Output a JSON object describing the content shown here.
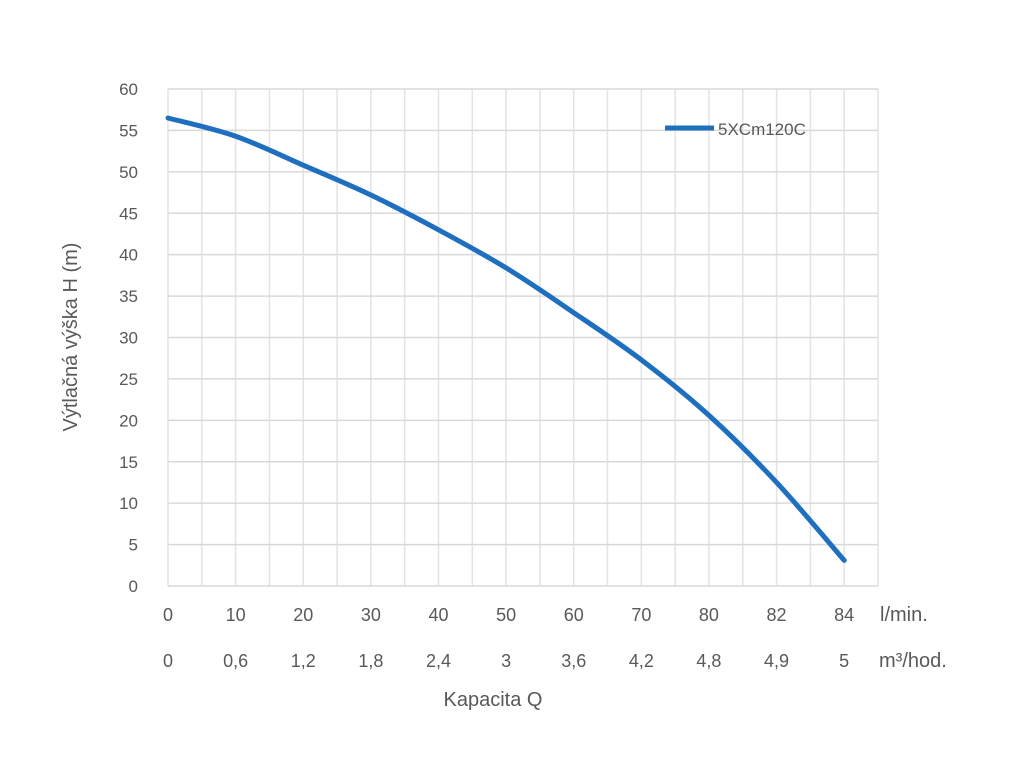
{
  "chart_data": {
    "type": "line",
    "title": "",
    "ylabel": "Výtlačná výška H (m)",
    "xlabel": "Kapacita Q",
    "ylim": [
      0,
      60
    ],
    "yticks": [
      "0",
      "5",
      "10",
      "15",
      "20",
      "25",
      "30",
      "35",
      "40",
      "45",
      "50",
      "55",
      "60"
    ],
    "x_lmin": [
      "0",
      "10",
      "20",
      "30",
      "40",
      "50",
      "60",
      "70",
      "80",
      "82",
      "84"
    ],
    "x_m3h": [
      "0",
      "0,6",
      "1,2",
      "1,8",
      "2,4",
      "3",
      "3,6",
      "4,2",
      "4,8",
      "4,9",
      "5"
    ],
    "x_unit_lmin": "l/min.",
    "x_unit_m3h": "m³/hod.",
    "grid": true,
    "legend_position": "top-right",
    "series": [
      {
        "name": "5XCm120C",
        "color": "#1f6fc0",
        "values": [
          56.5,
          54.3,
          50.8,
          47.2,
          43.0,
          38.4,
          33.0,
          27.3,
          20.6,
          12.5,
          3.1
        ]
      }
    ]
  }
}
